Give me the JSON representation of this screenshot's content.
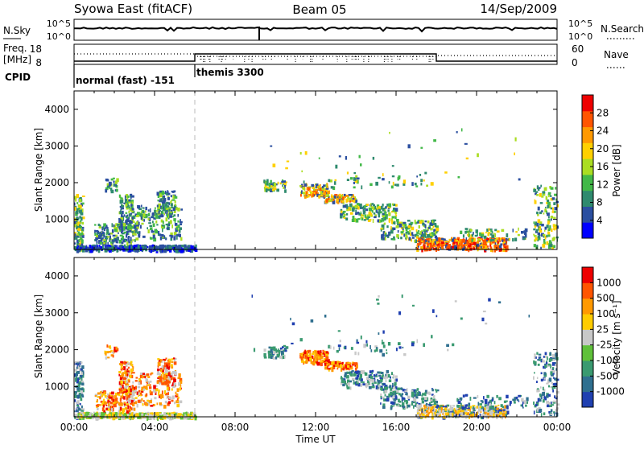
{
  "header": {
    "title": "Syowa East (fitACF)",
    "beam": "Beam 05",
    "date": "14/Sep/2009"
  },
  "noise_panel": {
    "left_label": "N.Sky",
    "right_label": "N.Search",
    "left_ticks": [
      "10^5",
      "10^0"
    ],
    "right_ticks": [
      "10^5",
      "10^0"
    ]
  },
  "freq_panel": {
    "left_label_line1": "Freq.",
    "left_label_line2": "[MHz]",
    "left_ticks": [
      "18",
      "8"
    ],
    "right_label": "Nave",
    "right_ticks": [
      "60",
      "0"
    ],
    "cpid_label": "CPID",
    "cpid_modes": [
      "normal (fast) -151",
      "themis 3300"
    ]
  },
  "chart_data": [
    {
      "type": "heatmap",
      "title": "",
      "ylabel": "Slant Range [km]",
      "xlabel": "",
      "ylim": [
        180,
        4500
      ],
      "yticks": [
        "4000",
        "3000",
        "2000",
        "1000"
      ],
      "xlim_hours": [
        0,
        24
      ],
      "colorbar": {
        "label": "Power [dB]",
        "ticks": [
          "28",
          "24",
          "20",
          "16",
          "12",
          "8",
          "4"
        ],
        "colors": [
          "#0000ff",
          "#2b4fa0",
          "#2f8a6e",
          "#42b848",
          "#aadd22",
          "#ffd000",
          "#ff9900",
          "#ff5500",
          "#ee0000"
        ]
      }
    },
    {
      "type": "heatmap",
      "title": "",
      "ylabel": "Slant Range [km]",
      "xlabel": "Time UT",
      "ylim": [
        180,
        4500
      ],
      "yticks": [
        "4000",
        "3000",
        "2000",
        "1000"
      ],
      "xlim_hours": [
        0,
        24
      ],
      "xticks": [
        "00:00",
        "04:00",
        "08:00",
        "12:00",
        "16:00",
        "20:00",
        "00:00"
      ],
      "colorbar": {
        "label": "Velocity [m s⁻¹]",
        "ticks": [
          "1000",
          "500",
          "100",
          "25",
          "-25",
          "-100",
          "-500",
          "-1000"
        ],
        "colors": [
          "#2040b0",
          "#2f6f8f",
          "#3a9a70",
          "#5fc03a",
          "#c8c8c8",
          "#ffcc00",
          "#ff9900",
          "#ff5500",
          "#ee0000"
        ]
      }
    }
  ]
}
